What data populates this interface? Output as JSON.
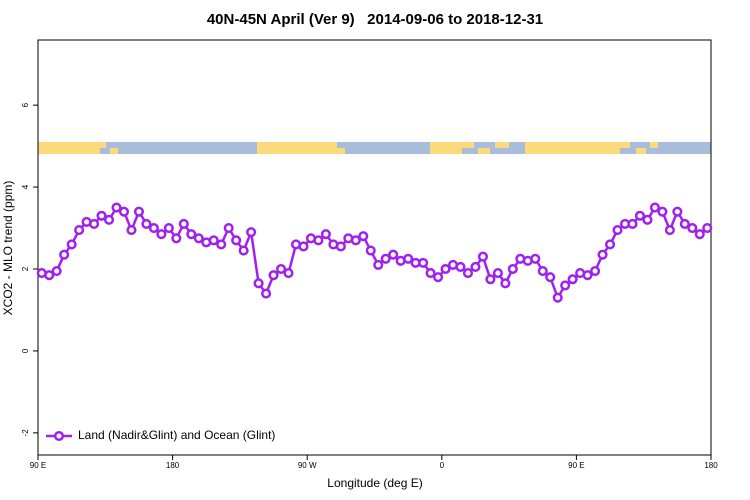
{
  "chart_data": {
    "type": "line",
    "title": "40N-45N April (Ver 9)   2014-09-06 to 2018-12-31",
    "xlabel": "Longitude (deg E)",
    "ylabel": "XCO2 - MLO trend (ppm)",
    "x": [
      92.5,
      97.5,
      102.5,
      107.5,
      112.5,
      117.5,
      122.5,
      127.5,
      132.5,
      137.5,
      142.5,
      147.5,
      152.5,
      157.5,
      162.5,
      167.5,
      172.5,
      177.5,
      182.5,
      187.5,
      192.5,
      197.5,
      202.5,
      207.5,
      212.5,
      217.5,
      222.5,
      227.5,
      232.5,
      237.5,
      242.5,
      247.5,
      252.5,
      257.5,
      262.5,
      267.5,
      272.5,
      277.5,
      282.5,
      287.5,
      292.5,
      297.5,
      302.5,
      307.5,
      312.5,
      317.5,
      322.5,
      327.5,
      332.5,
      337.5,
      342.5,
      347.5,
      352.5,
      357.5,
      362.5,
      367.5,
      372.5,
      377.5,
      382.5,
      387.5,
      392.5,
      397.5,
      402.5,
      407.5,
      412.5,
      417.5,
      422.5,
      427.5,
      432.5,
      437.5,
      442.5,
      447.5,
      452.5,
      457.5,
      462.5,
      467.5,
      472.5,
      477.5,
      482.5,
      487.5,
      492.5,
      497.5,
      502.5,
      507.5,
      512.5,
      517.5,
      522.5,
      527.5,
      532.5,
      537.5
    ],
    "series": [
      {
        "name": "Land (Nadir&Glint) and Ocean (Glint)",
        "color": "#a020f0",
        "values": [
          1.9,
          1.85,
          1.95,
          2.35,
          2.6,
          2.95,
          3.15,
          3.1,
          3.3,
          3.2,
          3.5,
          3.4,
          2.95,
          3.4,
          3.1,
          3.0,
          2.85,
          3.0,
          2.75,
          3.1,
          2.85,
          2.75,
          2.65,
          2.7,
          2.6,
          3.0,
          2.7,
          2.45,
          2.9,
          1.65,
          1.4,
          1.85,
          2.0,
          1.9,
          2.6,
          2.55,
          2.75,
          2.7,
          2.85,
          2.6,
          2.55,
          2.75,
          2.7,
          2.8,
          2.45,
          2.1,
          2.25,
          2.35,
          2.2,
          2.25,
          2.15,
          2.15,
          1.9,
          1.8,
          2.0,
          2.1,
          2.05,
          1.9,
          2.05,
          2.3,
          1.75,
          1.9,
          1.65,
          2.0,
          2.25,
          2.2,
          2.25,
          1.95,
          1.8,
          1.3,
          1.6,
          1.75,
          1.9,
          1.85,
          1.95,
          2.35,
          2.6,
          2.95,
          3.1,
          3.1,
          3.3,
          3.2,
          3.5,
          3.4,
          2.95,
          3.4,
          3.1,
          3.0,
          2.85,
          3.0
        ]
      }
    ],
    "xlim": [
      90,
      540
    ],
    "xticks": [
      {
        "value": 90,
        "label": "90 E"
      },
      180,
      {
        "value": 270,
        "label": "90 W"
      },
      {
        "value": 360,
        "label": "0"
      },
      {
        "value": 450,
        "label": "90 E"
      },
      {
        "value": 540,
        "label": "180"
      }
    ],
    "ylim": [
      -2.54,
      7.59
    ],
    "yticks": [
      -2,
      0,
      2,
      4,
      6
    ],
    "legend": "bottom left"
  }
}
